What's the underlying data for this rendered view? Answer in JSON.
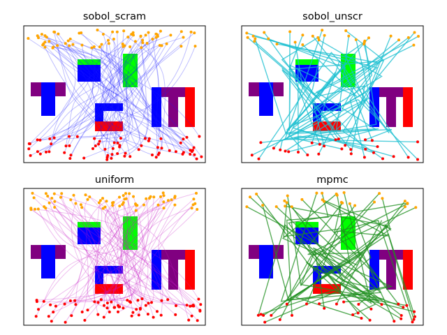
{
  "figure": {
    "panel_titles": [
      "sobol_scram",
      "sobol_unscr",
      "uniform",
      "mpmc"
    ]
  },
  "colors": {
    "sobol_scram": "#1a1aff",
    "sobol_unscr": "#17becf",
    "uniform": "#c71ac7",
    "mpmc": "#1f8f1f",
    "start_marker": "#ff0000",
    "goal_marker": "#ffa500",
    "obstacle_purple": "#800080",
    "obstacle_blue": "#0000ff",
    "obstacle_green": "#00ff00",
    "obstacle_red": "#ff0000"
  },
  "chart_data": [
    {
      "type": "scatter",
      "title": "sobol_scram",
      "xlim": [
        0,
        1
      ],
      "ylim": [
        0,
        1
      ],
      "grid": false,
      "line_style": "many faint paths",
      "path_count": 70
    },
    {
      "type": "scatter",
      "title": "sobol_unscr",
      "xlim": [
        0,
        1
      ],
      "ylim": [
        0,
        1
      ],
      "grid": false,
      "line_style": "tree of paths",
      "path_count": 30
    },
    {
      "type": "scatter",
      "title": "uniform",
      "xlim": [
        0,
        1
      ],
      "ylim": [
        0,
        1
      ],
      "grid": false,
      "line_style": "many faint paths",
      "path_count": 70
    },
    {
      "type": "scatter",
      "title": "mpmc",
      "xlim": [
        0,
        1
      ],
      "ylim": [
        0,
        1
      ],
      "grid": false,
      "line_style": "tree of paths",
      "path_count": 30
    }
  ]
}
